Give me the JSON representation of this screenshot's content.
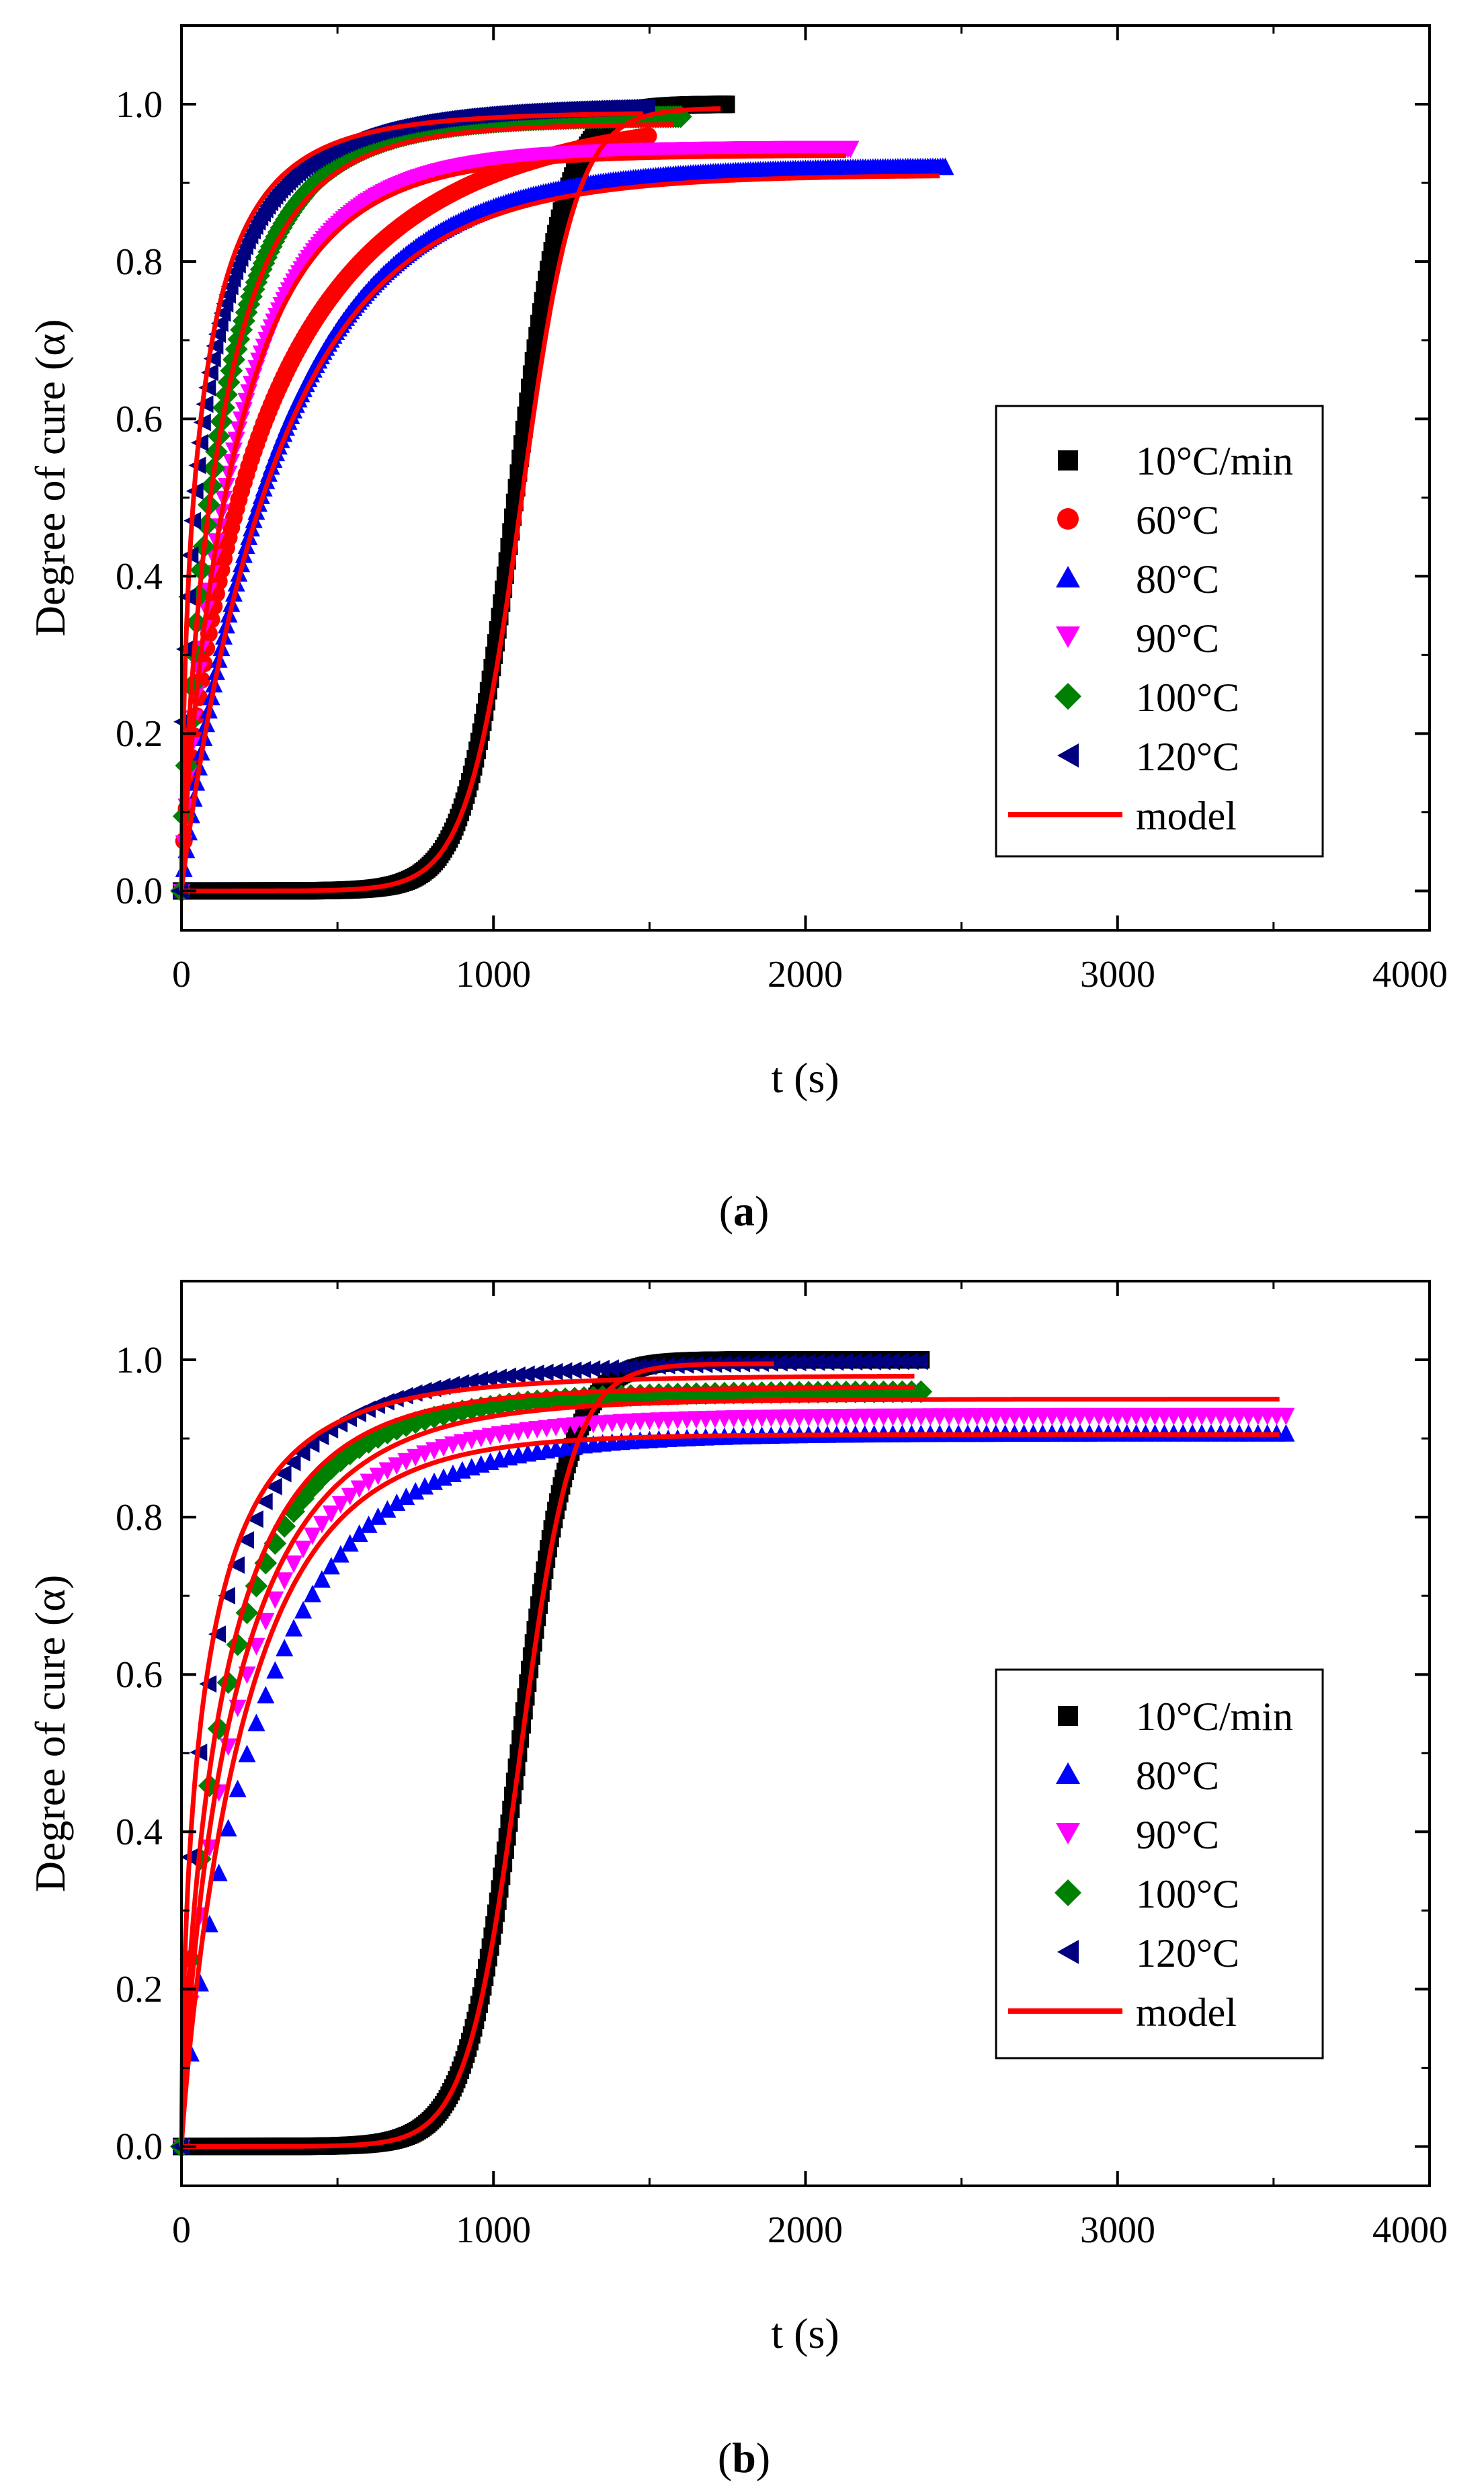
{
  "figure": {
    "panels": [
      {
        "id": "a",
        "label": "(a)",
        "label_letter": "a",
        "legend_entries": [
          "10°C/min",
          "60°C",
          "80°C",
          "90°C",
          "100°C",
          "120°C",
          "model"
        ]
      },
      {
        "id": "b",
        "label": "(b)",
        "label_letter": "b",
        "legend_entries": [
          "10°C/min",
          "80°C",
          "90°C",
          "100°C",
          "120°C",
          "model"
        ]
      }
    ]
  },
  "chart_data": [
    {
      "type": "scatter",
      "panel": "a",
      "title": "",
      "xlabel": "t (s)",
      "ylabel": "Degree of cure (α)",
      "xlim": [
        0,
        4000
      ],
      "ylim": [
        -0.05,
        1.1
      ],
      "xticks": [
        0,
        1000,
        2000,
        3000,
        4000
      ],
      "yticks": [
        0.0,
        0.2,
        0.4,
        0.6,
        0.8,
        1.0
      ],
      "xtick_labels": [
        "0",
        "1000",
        "2000",
        "3000",
        "4000"
      ],
      "ytick_labels": [
        "0.0",
        "0.2",
        "0.4",
        "0.6",
        "0.8",
        "1.0"
      ],
      "legend_position": "center-right",
      "series": [
        {
          "name": "10°C/min",
          "kind": "dynamic",
          "marker": "square",
          "color": "#000000",
          "t0": 1070,
          "k": 0.0125,
          "amax": 1.0,
          "tmax": 1750,
          "step": 6
        },
        {
          "name": "60°C",
          "kind": "iso",
          "marker": "circle",
          "color": "#ff0000",
          "tau": 300,
          "n": 0.75,
          "amax": 0.995,
          "tmax": 1500,
          "step": 8
        },
        {
          "name": "80°C",
          "kind": "iso",
          "marker": "triangle-up",
          "color": "#0000ff",
          "tau": 330,
          "n": 0.95,
          "amax": 0.92,
          "tmax": 2450,
          "step": 8
        },
        {
          "name": "90°C",
          "kind": "iso",
          "marker": "triangle-down",
          "color": "#ff00ff",
          "tau": 190,
          "n": 0.85,
          "amax": 0.945,
          "tmax": 2150,
          "step": 8
        },
        {
          "name": "100°C",
          "kind": "iso",
          "marker": "diamond",
          "color": "#008000",
          "tau": 140,
          "n": 0.8,
          "amax": 0.985,
          "tmax": 1600,
          "step": 8
        },
        {
          "name": "120°C",
          "kind": "iso",
          "marker": "triangle-left",
          "color": "#000080",
          "tau": 85,
          "n": 0.6,
          "amax": 1.0,
          "tmax": 1500,
          "step": 8
        }
      ],
      "model_curves": [
        {
          "name": "model",
          "kind": "dynamic",
          "t0": 1090,
          "k": 0.0115,
          "amax": 0.995,
          "tmax": 1730,
          "color": "#ff0000"
        },
        {
          "name": "model",
          "kind": "iso",
          "tau": 330,
          "n": 0.95,
          "amax": 0.91,
          "tmax": 2430,
          "color": "#ff0000"
        },
        {
          "name": "model",
          "kind": "iso",
          "tau": 190,
          "n": 0.85,
          "amax": 0.935,
          "tmax": 2130,
          "color": "#ff0000"
        },
        {
          "name": "model",
          "kind": "iso",
          "tau": 140,
          "n": 0.8,
          "amax": 0.975,
          "tmax": 1580,
          "color": "#ff0000"
        },
        {
          "name": "model",
          "kind": "iso",
          "tau": 70,
          "n": 0.6,
          "amax": 0.99,
          "tmax": 1480,
          "color": "#ff0000"
        }
      ]
    },
    {
      "type": "scatter",
      "panel": "b",
      "title": "",
      "xlabel": "t (s)",
      "ylabel": "Degree of cure (α)",
      "xlim": [
        0,
        4000
      ],
      "ylim": [
        -0.05,
        1.1
      ],
      "xticks": [
        0,
        1000,
        2000,
        3000,
        4000
      ],
      "yticks": [
        0.0,
        0.2,
        0.4,
        0.6,
        0.8,
        1.0
      ],
      "xtick_labels": [
        "0",
        "1000",
        "2000",
        "3000",
        "4000"
      ],
      "ytick_labels": [
        "0.0",
        "0.2",
        "0.4",
        "0.6",
        "0.8",
        "1.0"
      ],
      "legend_position": "lower-right",
      "series": [
        {
          "name": "10°C/min",
          "kind": "dynamic",
          "marker": "square",
          "color": "#000000",
          "t0": 1080,
          "k": 0.012,
          "amax": 1.0,
          "tmax": 2370,
          "step": 6
        },
        {
          "name": "80°C",
          "kind": "iso",
          "marker": "triangle-up",
          "color": "#0000ff",
          "tau": 270,
          "n": 0.9,
          "amax": 0.905,
          "tmax": 3560,
          "step": 30
        },
        {
          "name": "90°C",
          "kind": "iso",
          "marker": "triangle-down",
          "color": "#ff00ff",
          "tau": 200,
          "n": 0.8,
          "amax": 0.93,
          "tmax": 3540,
          "step": 30
        },
        {
          "name": "100°C",
          "kind": "iso",
          "marker": "diamond",
          "color": "#008000",
          "tau": 160,
          "n": 0.75,
          "amax": 0.96,
          "tmax": 2370,
          "step": 30
        },
        {
          "name": "120°C",
          "kind": "iso",
          "marker": "triangle-left",
          "color": "#000080",
          "tau": 110,
          "n": 0.6,
          "amax": 1.0,
          "tmax": 2370,
          "step": 30
        }
      ],
      "model_curves": [
        {
          "name": "model",
          "kind": "dynamic",
          "t0": 1085,
          "k": 0.0118,
          "amax": 0.995,
          "tmax": 1900,
          "color": "#ff0000"
        },
        {
          "name": "model",
          "kind": "iso",
          "tau": 220,
          "n": 0.9,
          "amax": 0.905,
          "tmax": 3520,
          "color": "#ff0000"
        },
        {
          "name": "model",
          "kind": "iso",
          "tau": 190,
          "n": 0.8,
          "amax": 0.95,
          "tmax": 3520,
          "color": "#ff0000"
        },
        {
          "name": "model",
          "kind": "iso",
          "tau": 150,
          "n": 0.75,
          "amax": 0.965,
          "tmax": 2350,
          "color": "#ff0000"
        },
        {
          "name": "model",
          "kind": "iso",
          "tau": 90,
          "n": 0.6,
          "amax": 0.98,
          "tmax": 2350,
          "color": "#ff0000"
        }
      ]
    }
  ]
}
